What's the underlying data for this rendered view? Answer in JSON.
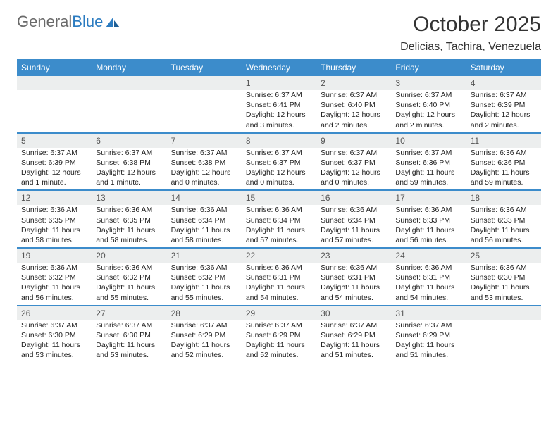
{
  "colors": {
    "header_bar": "#3c8ccb",
    "daynum_bg": "#eceeee",
    "separator": "#3c8ccb",
    "logo_gray": "#6a6a6a",
    "logo_blue": "#2b7bc0"
  },
  "logo": {
    "gray": "General",
    "blue": "Blue"
  },
  "title": "October 2025",
  "location": "Delicias, Tachira, Venezuela",
  "weekdays": [
    "Sunday",
    "Monday",
    "Tuesday",
    "Wednesday",
    "Thursday",
    "Friday",
    "Saturday"
  ],
  "weeks": [
    [
      {
        "n": "",
        "sr": "",
        "ss": "",
        "d1": "",
        "d2": ""
      },
      {
        "n": "",
        "sr": "",
        "ss": "",
        "d1": "",
        "d2": ""
      },
      {
        "n": "",
        "sr": "",
        "ss": "",
        "d1": "",
        "d2": ""
      },
      {
        "n": "1",
        "sr": "Sunrise: 6:37 AM",
        "ss": "Sunset: 6:41 PM",
        "d1": "Daylight: 12 hours",
        "d2": "and 3 minutes."
      },
      {
        "n": "2",
        "sr": "Sunrise: 6:37 AM",
        "ss": "Sunset: 6:40 PM",
        "d1": "Daylight: 12 hours",
        "d2": "and 2 minutes."
      },
      {
        "n": "3",
        "sr": "Sunrise: 6:37 AM",
        "ss": "Sunset: 6:40 PM",
        "d1": "Daylight: 12 hours",
        "d2": "and 2 minutes."
      },
      {
        "n": "4",
        "sr": "Sunrise: 6:37 AM",
        "ss": "Sunset: 6:39 PM",
        "d1": "Daylight: 12 hours",
        "d2": "and 2 minutes."
      }
    ],
    [
      {
        "n": "5",
        "sr": "Sunrise: 6:37 AM",
        "ss": "Sunset: 6:39 PM",
        "d1": "Daylight: 12 hours",
        "d2": "and 1 minute."
      },
      {
        "n": "6",
        "sr": "Sunrise: 6:37 AM",
        "ss": "Sunset: 6:38 PM",
        "d1": "Daylight: 12 hours",
        "d2": "and 1 minute."
      },
      {
        "n": "7",
        "sr": "Sunrise: 6:37 AM",
        "ss": "Sunset: 6:38 PM",
        "d1": "Daylight: 12 hours",
        "d2": "and 0 minutes."
      },
      {
        "n": "8",
        "sr": "Sunrise: 6:37 AM",
        "ss": "Sunset: 6:37 PM",
        "d1": "Daylight: 12 hours",
        "d2": "and 0 minutes."
      },
      {
        "n": "9",
        "sr": "Sunrise: 6:37 AM",
        "ss": "Sunset: 6:37 PM",
        "d1": "Daylight: 12 hours",
        "d2": "and 0 minutes."
      },
      {
        "n": "10",
        "sr": "Sunrise: 6:37 AM",
        "ss": "Sunset: 6:36 PM",
        "d1": "Daylight: 11 hours",
        "d2": "and 59 minutes."
      },
      {
        "n": "11",
        "sr": "Sunrise: 6:36 AM",
        "ss": "Sunset: 6:36 PM",
        "d1": "Daylight: 11 hours",
        "d2": "and 59 minutes."
      }
    ],
    [
      {
        "n": "12",
        "sr": "Sunrise: 6:36 AM",
        "ss": "Sunset: 6:35 PM",
        "d1": "Daylight: 11 hours",
        "d2": "and 58 minutes."
      },
      {
        "n": "13",
        "sr": "Sunrise: 6:36 AM",
        "ss": "Sunset: 6:35 PM",
        "d1": "Daylight: 11 hours",
        "d2": "and 58 minutes."
      },
      {
        "n": "14",
        "sr": "Sunrise: 6:36 AM",
        "ss": "Sunset: 6:34 PM",
        "d1": "Daylight: 11 hours",
        "d2": "and 58 minutes."
      },
      {
        "n": "15",
        "sr": "Sunrise: 6:36 AM",
        "ss": "Sunset: 6:34 PM",
        "d1": "Daylight: 11 hours",
        "d2": "and 57 minutes."
      },
      {
        "n": "16",
        "sr": "Sunrise: 6:36 AM",
        "ss": "Sunset: 6:34 PM",
        "d1": "Daylight: 11 hours",
        "d2": "and 57 minutes."
      },
      {
        "n": "17",
        "sr": "Sunrise: 6:36 AM",
        "ss": "Sunset: 6:33 PM",
        "d1": "Daylight: 11 hours",
        "d2": "and 56 minutes."
      },
      {
        "n": "18",
        "sr": "Sunrise: 6:36 AM",
        "ss": "Sunset: 6:33 PM",
        "d1": "Daylight: 11 hours",
        "d2": "and 56 minutes."
      }
    ],
    [
      {
        "n": "19",
        "sr": "Sunrise: 6:36 AM",
        "ss": "Sunset: 6:32 PM",
        "d1": "Daylight: 11 hours",
        "d2": "and 56 minutes."
      },
      {
        "n": "20",
        "sr": "Sunrise: 6:36 AM",
        "ss": "Sunset: 6:32 PM",
        "d1": "Daylight: 11 hours",
        "d2": "and 55 minutes."
      },
      {
        "n": "21",
        "sr": "Sunrise: 6:36 AM",
        "ss": "Sunset: 6:32 PM",
        "d1": "Daylight: 11 hours",
        "d2": "and 55 minutes."
      },
      {
        "n": "22",
        "sr": "Sunrise: 6:36 AM",
        "ss": "Sunset: 6:31 PM",
        "d1": "Daylight: 11 hours",
        "d2": "and 54 minutes."
      },
      {
        "n": "23",
        "sr": "Sunrise: 6:36 AM",
        "ss": "Sunset: 6:31 PM",
        "d1": "Daylight: 11 hours",
        "d2": "and 54 minutes."
      },
      {
        "n": "24",
        "sr": "Sunrise: 6:36 AM",
        "ss": "Sunset: 6:31 PM",
        "d1": "Daylight: 11 hours",
        "d2": "and 54 minutes."
      },
      {
        "n": "25",
        "sr": "Sunrise: 6:36 AM",
        "ss": "Sunset: 6:30 PM",
        "d1": "Daylight: 11 hours",
        "d2": "and 53 minutes."
      }
    ],
    [
      {
        "n": "26",
        "sr": "Sunrise: 6:37 AM",
        "ss": "Sunset: 6:30 PM",
        "d1": "Daylight: 11 hours",
        "d2": "and 53 minutes."
      },
      {
        "n": "27",
        "sr": "Sunrise: 6:37 AM",
        "ss": "Sunset: 6:30 PM",
        "d1": "Daylight: 11 hours",
        "d2": "and 53 minutes."
      },
      {
        "n": "28",
        "sr": "Sunrise: 6:37 AM",
        "ss": "Sunset: 6:29 PM",
        "d1": "Daylight: 11 hours",
        "d2": "and 52 minutes."
      },
      {
        "n": "29",
        "sr": "Sunrise: 6:37 AM",
        "ss": "Sunset: 6:29 PM",
        "d1": "Daylight: 11 hours",
        "d2": "and 52 minutes."
      },
      {
        "n": "30",
        "sr": "Sunrise: 6:37 AM",
        "ss": "Sunset: 6:29 PM",
        "d1": "Daylight: 11 hours",
        "d2": "and 51 minutes."
      },
      {
        "n": "31",
        "sr": "Sunrise: 6:37 AM",
        "ss": "Sunset: 6:29 PM",
        "d1": "Daylight: 11 hours",
        "d2": "and 51 minutes."
      },
      {
        "n": "",
        "sr": "",
        "ss": "",
        "d1": "",
        "d2": ""
      }
    ]
  ]
}
